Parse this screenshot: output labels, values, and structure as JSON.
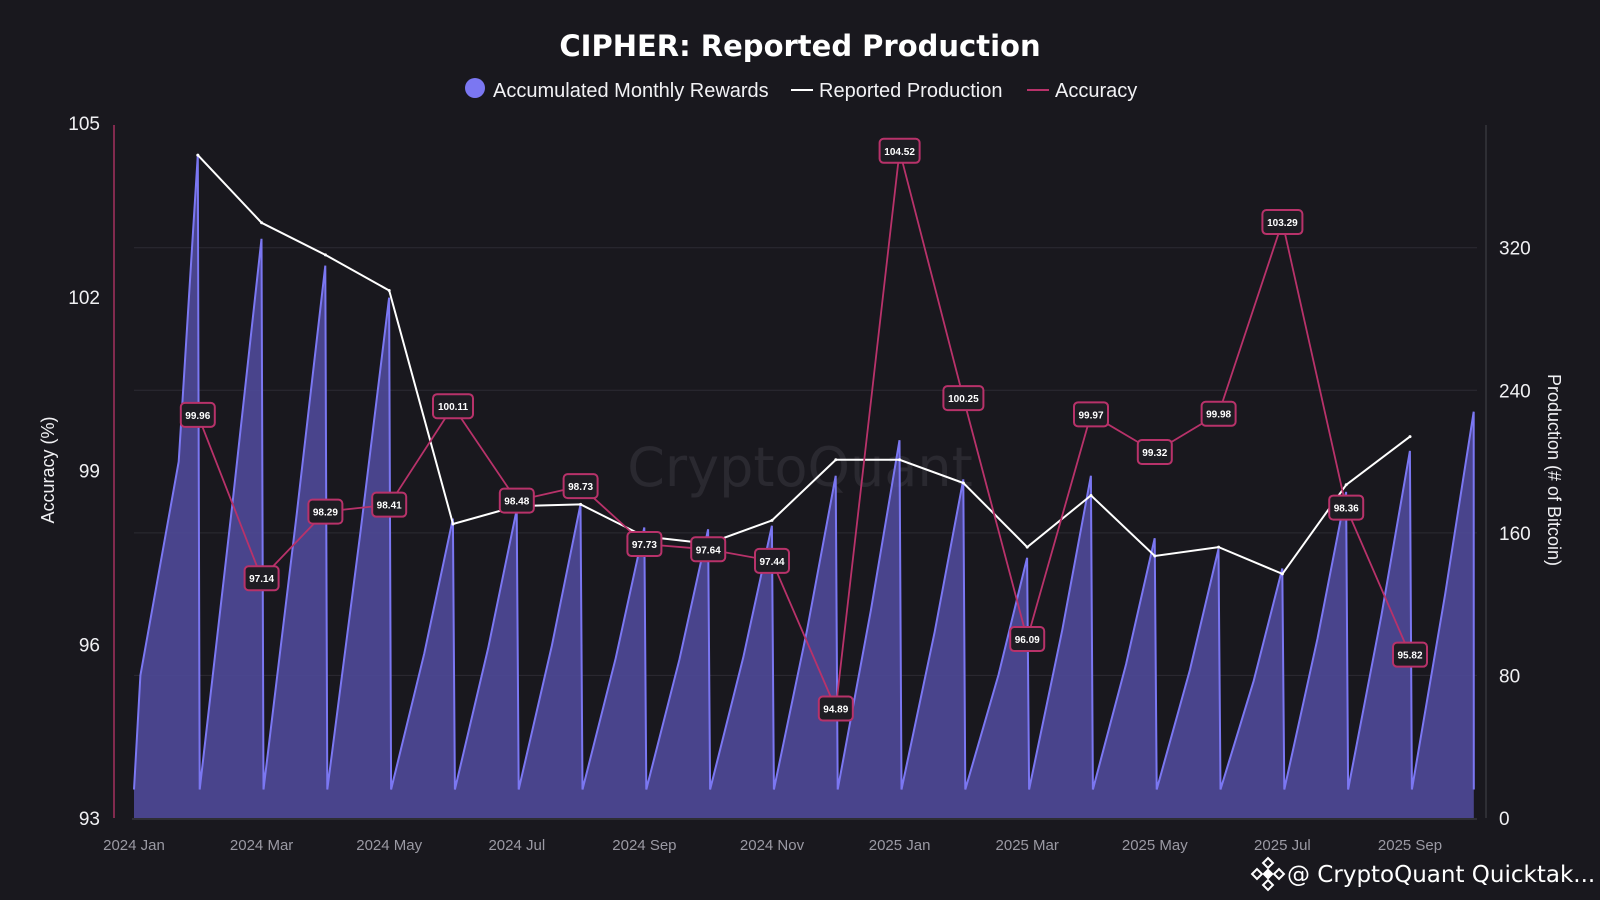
{
  "chart_data": {
    "type": "line",
    "title": "CIPHER: Reported Production",
    "legend": [
      {
        "name": "Accumulated Monthly Rewards",
        "marker": "circle",
        "color": "#7b77f2"
      },
      {
        "name": "Reported Production",
        "marker": "line",
        "color": "#ffffff"
      },
      {
        "name": "Accuracy",
        "marker": "line",
        "color": "#b8326a"
      }
    ],
    "legend_position": "top-center",
    "ylabel_left": "Accuracy (%)",
    "ylabel_right": "Production (# of Bitcoin)",
    "ylim_left": [
      93,
      105
    ],
    "yticks_left": [
      93,
      96,
      99,
      102,
      105
    ],
    "ylim_right": [
      0,
      390
    ],
    "yticks_right": [
      0,
      80,
      160,
      240,
      320
    ],
    "x_tick_labels": [
      "2024 Jan",
      "2024 Mar",
      "2024 May",
      "2024 Jul",
      "2024 Sep",
      "2024 Nov",
      "2025 Jan",
      "2025 Mar",
      "2025 May",
      "2025 Jul",
      "2025 Sep"
    ],
    "x_tick_months": [
      0,
      2,
      4,
      6,
      8,
      10,
      12,
      14,
      16,
      18,
      20
    ],
    "x_range_months": [
      0,
      21.05
    ],
    "months": [
      "2024 Feb",
      "2024 Mar",
      "2024 Apr",
      "2024 May",
      "2024 Jun",
      "2024 Jul",
      "2024 Aug",
      "2024 Sep",
      "2024 Oct",
      "2024 Nov",
      "2024 Dec",
      "2025 Jan",
      "2025 Feb",
      "2025 Mar",
      "2025 Apr",
      "2025 May",
      "2025 Jun",
      "2025 Jul",
      "2025 Aug",
      "2025 Sep"
    ],
    "series": [
      {
        "name": "Accumulated Monthly Rewards",
        "axis": "right",
        "style": "sawtooth-area",
        "color": "#7b77f2",
        "monthly_peaks": [
          372,
          325,
          310,
          292,
          168,
          173,
          176,
          163,
          162,
          164,
          192,
          212,
          190,
          146,
          192,
          157,
          151,
          140,
          183,
          206,
          228
        ],
        "start_value": 16,
        "end_value": 16
      },
      {
        "name": "Reported Production",
        "axis": "right",
        "color": "#ffffff",
        "values": [
          372,
          334,
          316,
          296,
          165,
          175,
          176,
          158,
          154,
          167,
          201,
          201,
          188,
          152,
          181,
          147,
          152,
          137,
          187,
          214
        ]
      },
      {
        "name": "Accuracy",
        "axis": "left",
        "color": "#b8326a",
        "values": [
          99.96,
          97.14,
          98.29,
          98.41,
          100.11,
          98.48,
          98.73,
          97.73,
          97.64,
          97.44,
          94.89,
          104.52,
          100.25,
          96.09,
          99.97,
          99.32,
          99.98,
          103.29,
          98.36,
          95.82
        ],
        "data_labels": [
          "99.96",
          "97.14",
          "98.29",
          "98.41",
          "100.11",
          "98.48",
          "98.73",
          "97.73",
          "97.64",
          "97.44",
          "94.89",
          "104.52",
          "100.25",
          "96.09",
          "99.97",
          "99.32",
          "99.98",
          "103.29",
          "98.36",
          "95.82"
        ]
      }
    ],
    "grid": true
  },
  "watermark": "CryptoQuant",
  "credit": "@ CryptoQuant Quicktak..."
}
